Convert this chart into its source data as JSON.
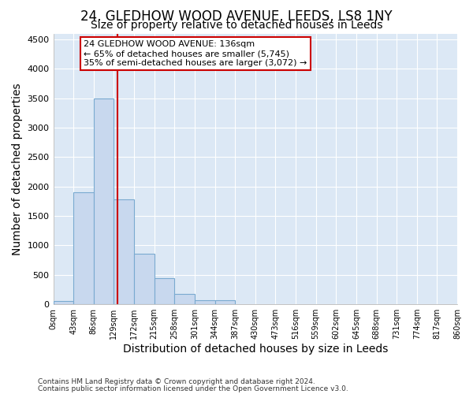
{
  "title1": "24, GLEDHOW WOOD AVENUE, LEEDS, LS8 1NY",
  "title2": "Size of property relative to detached houses in Leeds",
  "xlabel": "Distribution of detached houses by size in Leeds",
  "ylabel": "Number of detached properties",
  "footnote1": "Contains HM Land Registry data © Crown copyright and database right 2024.",
  "footnote2": "Contains public sector information licensed under the Open Government Licence v3.0.",
  "bin_edges": [
    0,
    43,
    86,
    129,
    172,
    215,
    258,
    301,
    344,
    387,
    430,
    473,
    516,
    559,
    602,
    645,
    688,
    731,
    774,
    817,
    860
  ],
  "bar_heights": [
    50,
    1900,
    3500,
    1780,
    860,
    450,
    175,
    75,
    65,
    0,
    0,
    0,
    0,
    0,
    0,
    0,
    0,
    0,
    0,
    0
  ],
  "bar_color": "#c8d8ee",
  "bar_edge_color": "#7aaad0",
  "property_size": 136,
  "red_line_color": "#cc0000",
  "annotation_text": "24 GLEDHOW WOOD AVENUE: 136sqm\n← 65% of detached houses are smaller (5,745)\n35% of semi-detached houses are larger (3,072) →",
  "annotation_box_color": "#ffffff",
  "annotation_box_edge": "#cc0000",
  "ylim": [
    0,
    4600
  ],
  "yticks": [
    0,
    500,
    1000,
    1500,
    2000,
    2500,
    3000,
    3500,
    4000,
    4500
  ],
  "bg_color": "#dce8f5",
  "title1_fontsize": 12,
  "title2_fontsize": 10,
  "axis_label_fontsize": 10,
  "tick_fontsize": 8,
  "footnote_fontsize": 6.5
}
